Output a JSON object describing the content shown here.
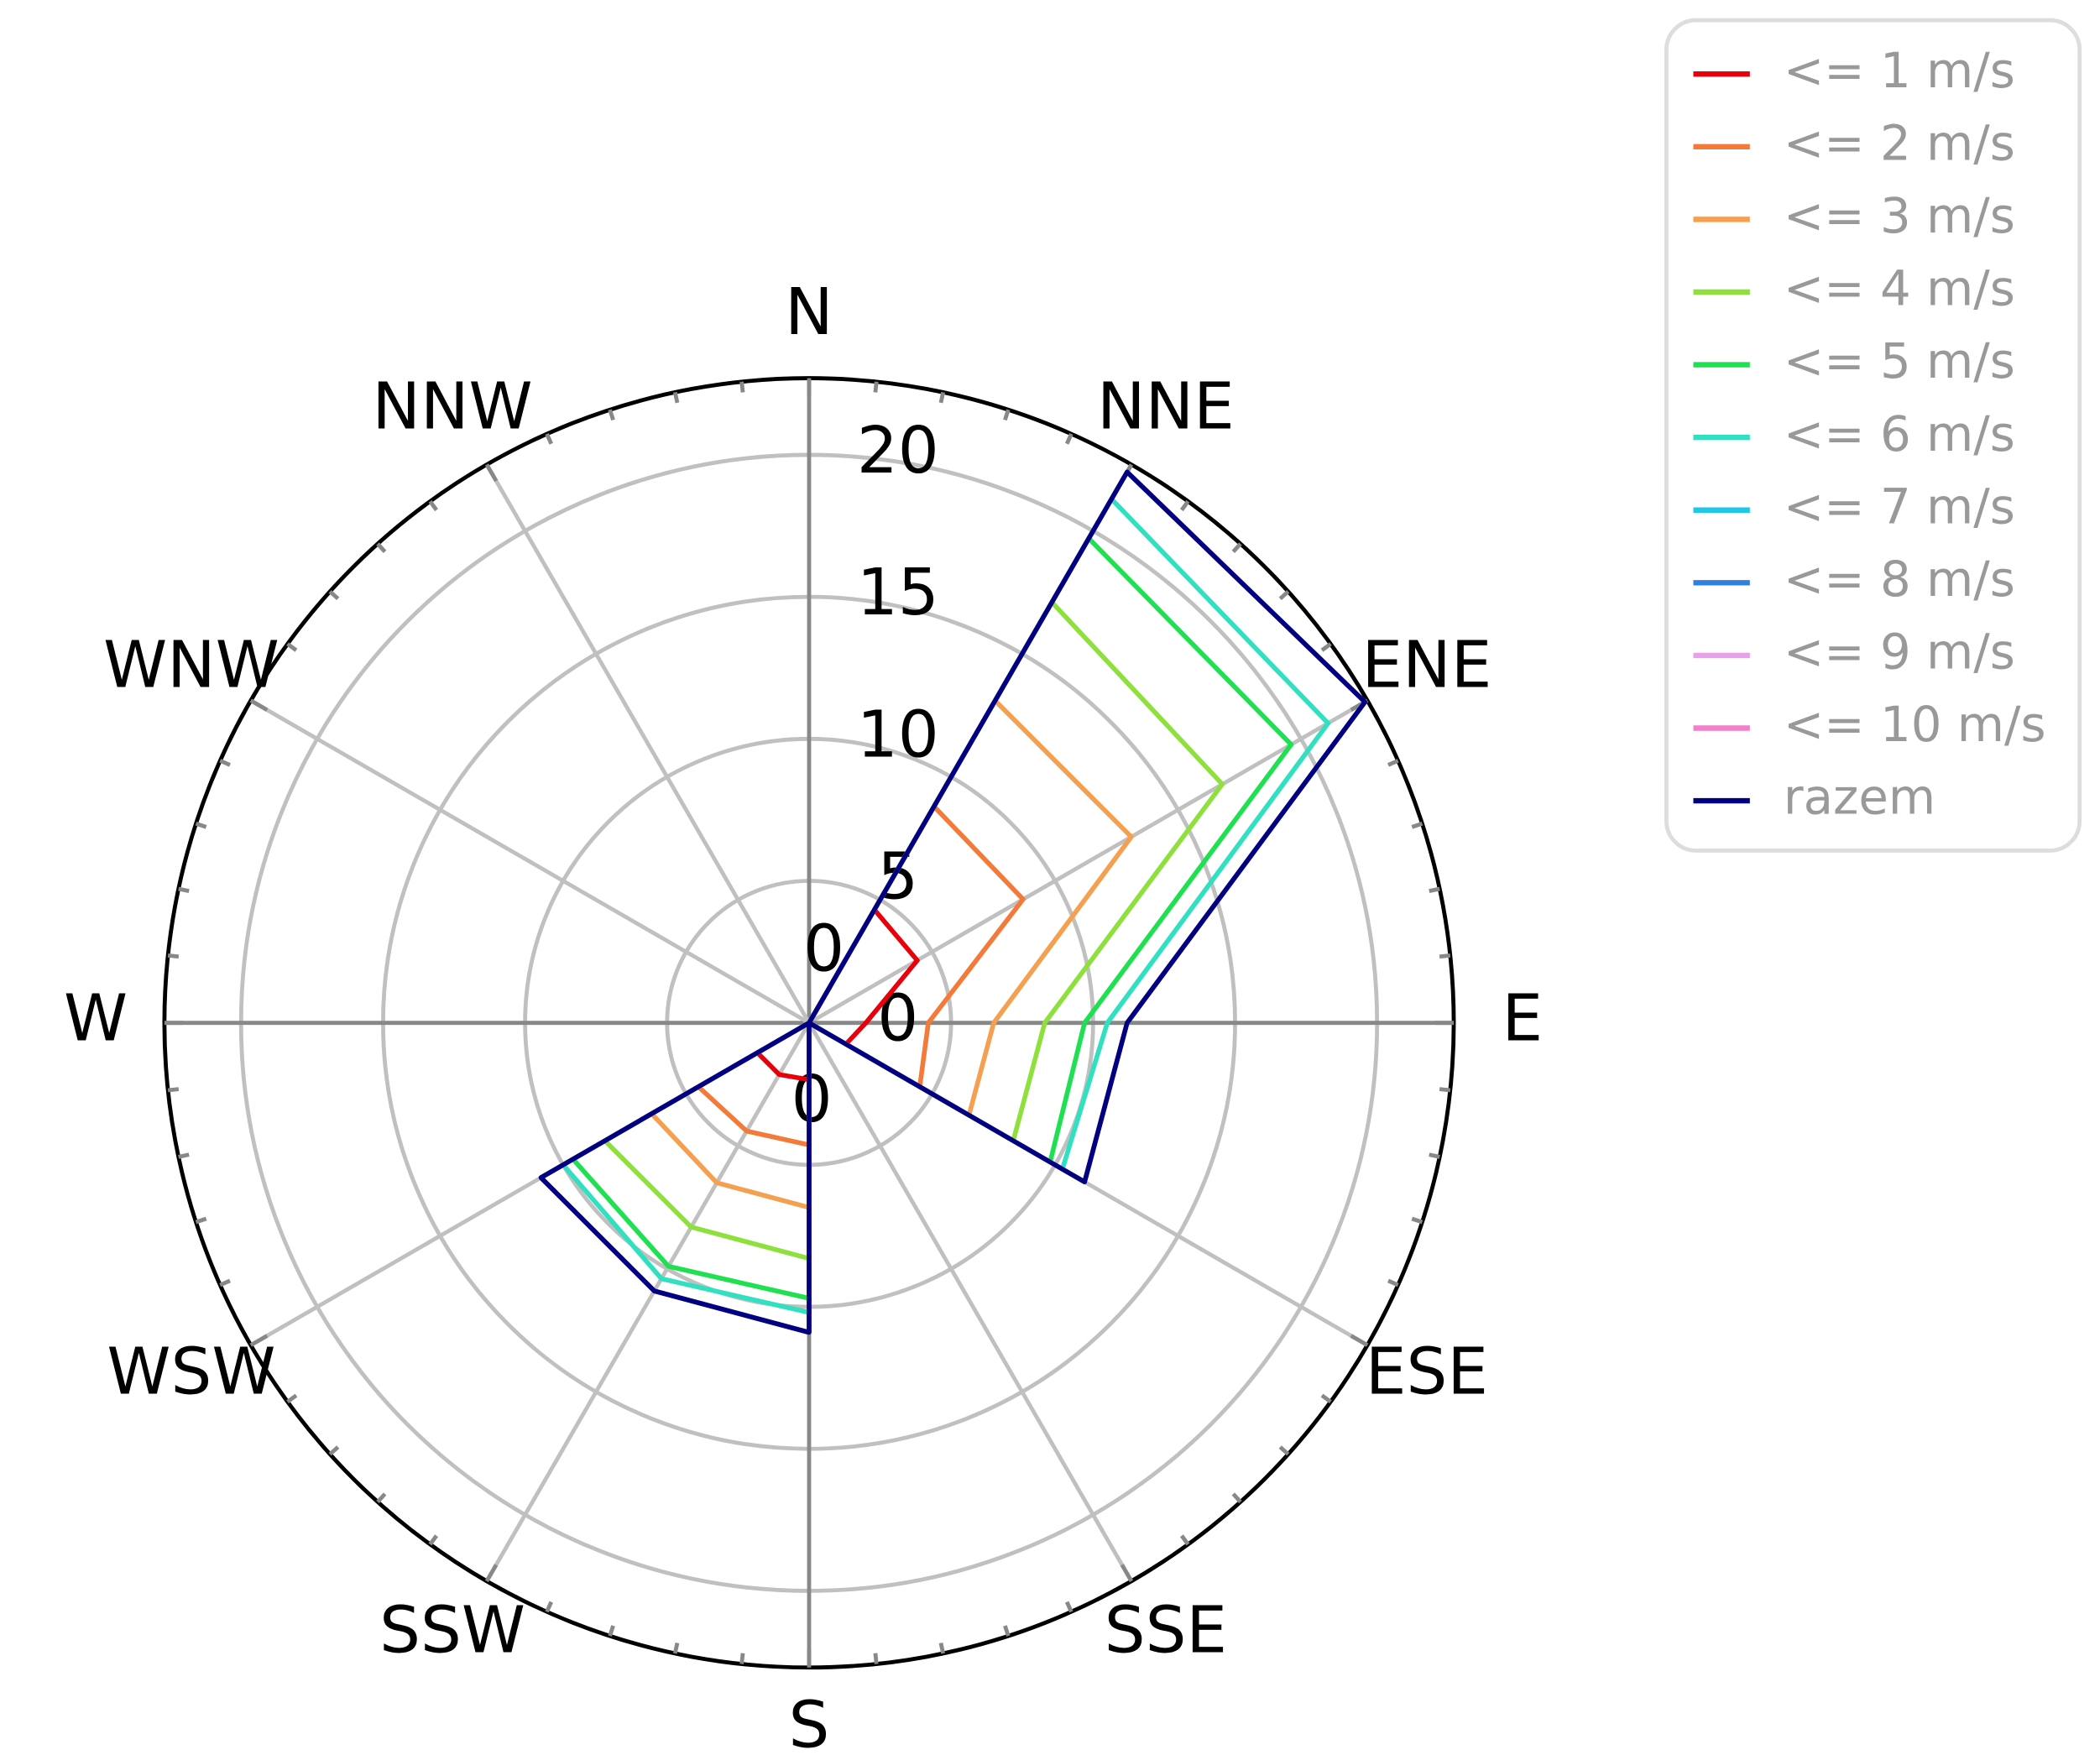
{
  "chart_data": {
    "type": "polar_line",
    "categories": [
      "N",
      "NNE",
      "ENE",
      "E",
      "ESE",
      "SSE",
      "S",
      "SSW",
      "WSW",
      "W",
      "WNW",
      "NNW"
    ],
    "ylim": [
      0,
      22.7
    ],
    "yticks": [
      0,
      5,
      10,
      15,
      20
    ],
    "annotations": [
      "0",
      "0"
    ],
    "grid": true,
    "legend": "upper right",
    "series": [
      {
        "name": "<= 1 m/s",
        "color": "#e8000b",
        "values": [
          0,
          4.6,
          4.4,
          2.0,
          1.5,
          0,
          2.0,
          2.1,
          2.1,
          0,
          0,
          0
        ]
      },
      {
        "name": "<= 2 m/s",
        "color": "#f47a3a",
        "values": [
          0,
          8.8,
          8.7,
          4.2,
          4.5,
          0,
          4.3,
          4.4,
          4.5,
          0,
          0,
          0
        ]
      },
      {
        "name": "<= 3 m/s",
        "color": "#f5a050",
        "values": [
          0,
          13.1,
          13.1,
          6.5,
          6.5,
          0,
          6.5,
          6.5,
          6.4,
          0,
          0,
          0
        ]
      },
      {
        "name": "<= 4 m/s",
        "color": "#8ee03c",
        "values": [
          0,
          17.1,
          16.8,
          8.3,
          8.3,
          0,
          8.3,
          8.3,
          8.3,
          0,
          0,
          0
        ]
      },
      {
        "name": "<= 5 m/s",
        "color": "#1ee050",
        "values": [
          0,
          19.7,
          19.6,
          9.7,
          9.8,
          0,
          9.7,
          9.9,
          9.6,
          0,
          0,
          0
        ]
      },
      {
        "name": "<= 6 m/s",
        "color": "#30e0c0",
        "values": [
          0,
          21.3,
          21.1,
          10.5,
          10.3,
          0,
          10.2,
          10.4,
          10.0,
          0,
          0,
          0
        ]
      },
      {
        "name": "<= 7 m/s",
        "color": "#20c8e8",
        "values": [
          0,
          22.4,
          22.6,
          11.2,
          11.2,
          0,
          10.9,
          10.9,
          10.9,
          0,
          0,
          0
        ]
      },
      {
        "name": "<= 8 m/s",
        "color": "#3080e0",
        "values": [
          0,
          22.4,
          22.6,
          11.2,
          11.2,
          0,
          10.9,
          10.9,
          10.9,
          0,
          0,
          0
        ]
      },
      {
        "name": "<= 9 m/s",
        "color": "#e8a0e8",
        "values": [
          0,
          22.4,
          22.6,
          11.2,
          11.2,
          0,
          10.9,
          10.9,
          10.9,
          0,
          0,
          0
        ]
      },
      {
        "name": "<= 10 m/s",
        "color": "#f080c8",
        "values": [
          0,
          22.4,
          22.6,
          11.2,
          11.2,
          0,
          10.9,
          10.9,
          10.9,
          0,
          0,
          0
        ]
      },
      {
        "name": "razem",
        "color": "#000080",
        "values": [
          0,
          22.4,
          22.6,
          11.2,
          11.2,
          0,
          10.9,
          10.9,
          10.9,
          0,
          0,
          0
        ]
      }
    ]
  }
}
